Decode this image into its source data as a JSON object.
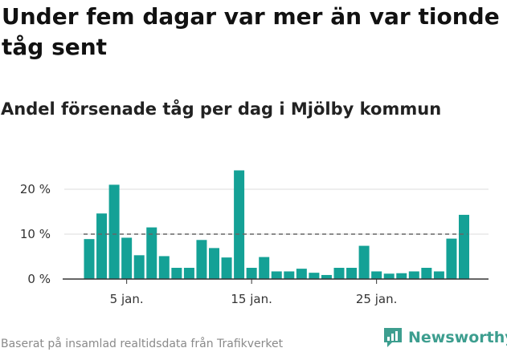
{
  "title": "Under fem dagar var mer än var tionde tåg sent",
  "subtitle": "Andel försenade tåg per dag i Mjölby kommun",
  "source": "Baserat på insamlad realtidsdata från Trafikverket",
  "brand": "Newsworthy",
  "colors": {
    "bar": "#14a196",
    "reference_line": "#666666",
    "grid": "#dddddd",
    "axis": "#333333",
    "brand": "#3d9e8f"
  },
  "chart_data": {
    "type": "bar",
    "x": [
      2,
      3,
      4,
      5,
      6,
      7,
      8,
      9,
      10,
      11,
      12,
      13,
      14,
      15,
      16,
      17,
      18,
      19,
      20,
      21,
      22,
      23,
      24,
      25,
      26,
      27,
      28,
      29,
      30,
      31,
      32
    ],
    "values": [
      8.9,
      14.6,
      21.0,
      9.2,
      5.3,
      11.5,
      5.1,
      2.5,
      2.5,
      8.7,
      6.9,
      4.8,
      24.2,
      2.5,
      4.9,
      1.7,
      1.7,
      2.3,
      1.4,
      0.9,
      2.5,
      2.5,
      7.4,
      1.7,
      1.2,
      1.3,
      1.7,
      2.5,
      1.7,
      9.0,
      14.3
    ],
    "xticks": [
      {
        "value": 5,
        "label": "5 jan."
      },
      {
        "value": 15,
        "label": "15 jan."
      },
      {
        "value": 25,
        "label": "25 jan."
      }
    ],
    "yticks": [
      {
        "value": 0,
        "label": "0 %"
      },
      {
        "value": 10,
        "label": "10 %"
      },
      {
        "value": 20,
        "label": "20 %"
      }
    ],
    "ylim": [
      0,
      25
    ],
    "reference_line": 10,
    "grid": true
  }
}
